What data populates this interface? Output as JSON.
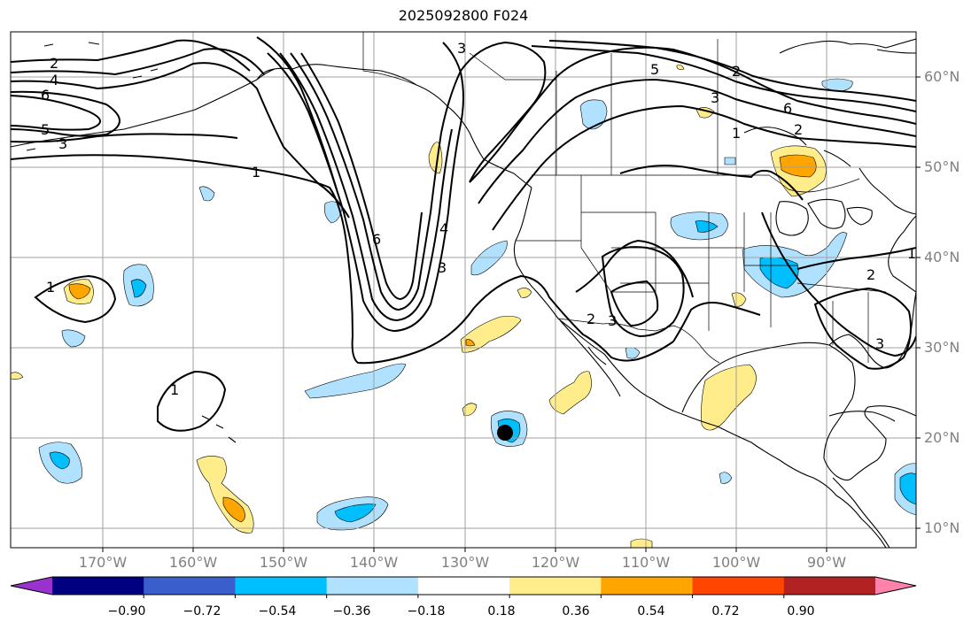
{
  "title": "2025092800 F024",
  "longitude_labels": [
    "170°W",
    "160°W",
    "150°W",
    "140°W",
    "130°W",
    "120°W",
    "110°W",
    "100°W",
    "90°W"
  ],
  "latitude_labels": [
    "60°N",
    "50°N",
    "40°N",
    "30°N",
    "20°N",
    "10°N"
  ],
  "colorbar": {
    "ticks": [
      "−0.90",
      "−0.72",
      "−0.54",
      "−0.36",
      "−0.18",
      "0.18",
      "0.36",
      "0.54",
      "0.72",
      "0.90"
    ],
    "colors": [
      "#9a32cd",
      "#000080",
      "#3a5fcd",
      "#00bfff",
      "#b0e2ff",
      "#ffffff",
      "#ffec8b",
      "#ffa500",
      "#ff4500",
      "#b22222",
      "#ff82ab"
    ]
  },
  "contour_labels": [
    "2",
    "4",
    "6",
    "5",
    "3",
    "1",
    "6",
    "4",
    "3",
    "5",
    "3",
    "6",
    "2",
    "1",
    "1",
    "1",
    "2",
    "3",
    "2",
    "3",
    "1",
    "2",
    "3"
  ],
  "colors": {
    "contour": "#000000",
    "grid": "#a0a0a0",
    "coast": "#000000",
    "axis_label": "#808080"
  }
}
